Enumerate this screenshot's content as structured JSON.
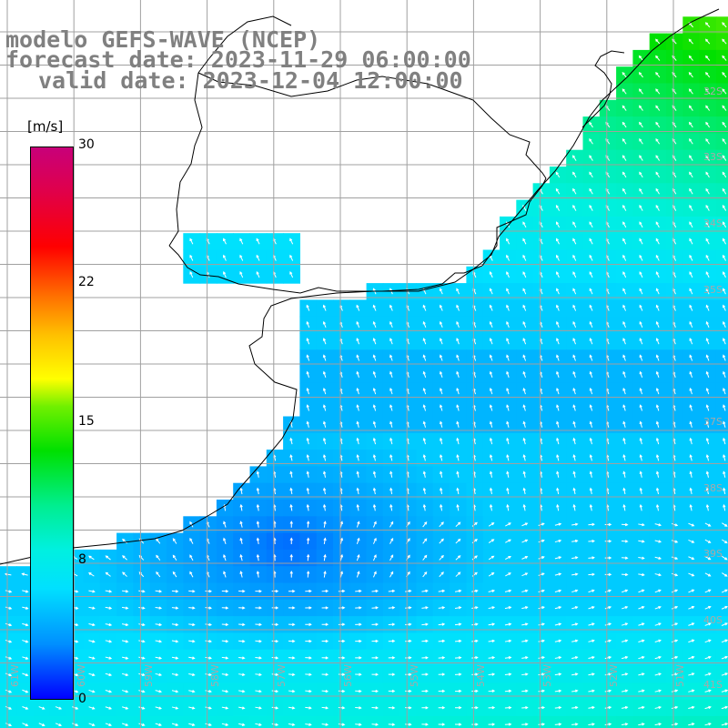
{
  "title": {
    "model": "modelo GEFS-WAVE (NCEP)",
    "forecast": "forecast date: 2023-11-29 06:00:00",
    "valid": "valid date: 2023-12-04 12:00:00"
  },
  "colorbar": {
    "units": "[m/s]",
    "ticks": [
      "30",
      "22",
      "15",
      "8",
      "0"
    ],
    "tick_values": [
      30,
      22,
      15,
      8,
      0
    ],
    "range": [
      0,
      30
    ]
  },
  "lat_labels": [
    "32S",
    "33S",
    "34S",
    "35S",
    "37S",
    "38S",
    "39S",
    "40S",
    "41S"
  ],
  "lon_labels": [
    "61W",
    "60W",
    "59W",
    "58W",
    "57W",
    "56W",
    "55W",
    "54W",
    "53W",
    "52W",
    "51W"
  ],
  "map": {
    "grid": true,
    "land_color": "#ffffff",
    "grid_color": "#a0a0a0",
    "arrow_color": "#ffffff"
  }
}
